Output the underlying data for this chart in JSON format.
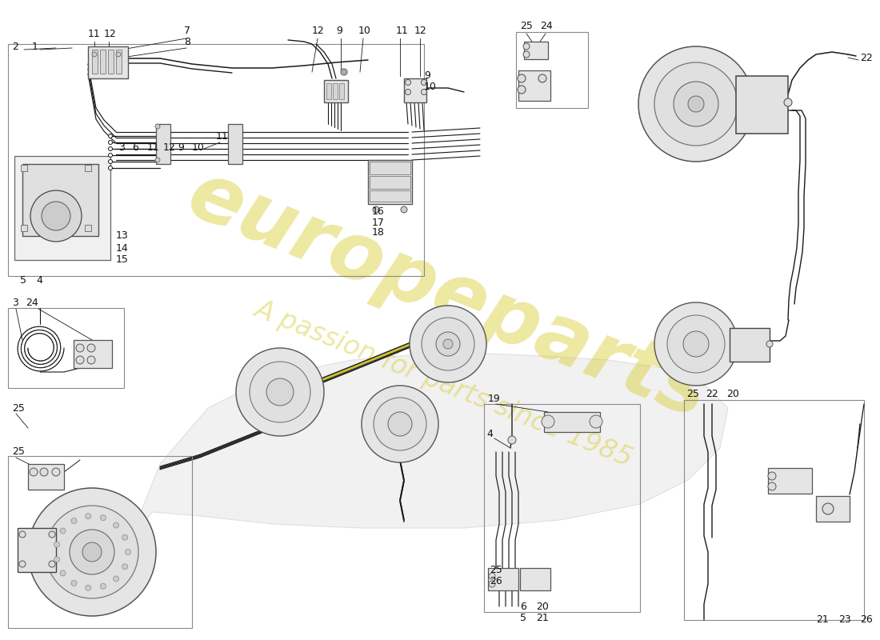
{
  "background_color": "#ffffff",
  "line_color": "#1a1a1a",
  "line_color_yellow": "#d4c830",
  "label_color": "#111111",
  "watermark_color": "#d8cc30",
  "watermark_alpha": 0.45,
  "lw_main": 1.0,
  "lw_thick": 1.4,
  "lw_thin": 0.7,
  "label_fontsize": 8.5,
  "car_silhouette_color": "#e0e0e0",
  "car_silhouette_alpha": 0.5,
  "component_fill": "#e8e8e8",
  "component_edge": "#555555"
}
